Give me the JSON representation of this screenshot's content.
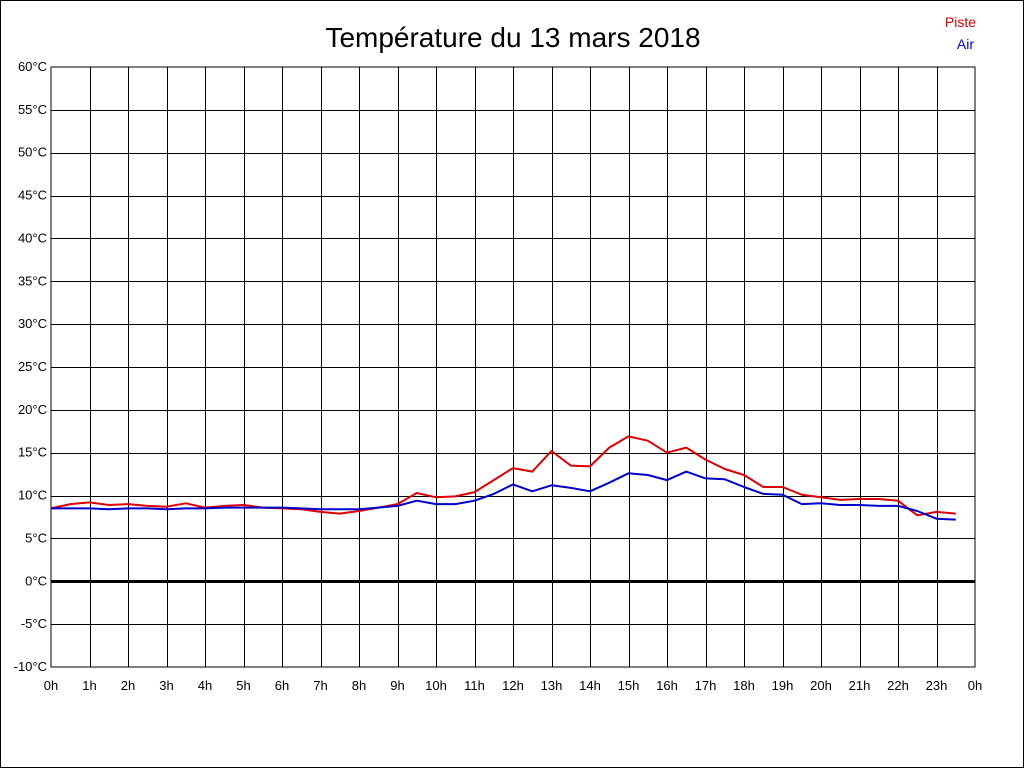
{
  "chart_data": {
    "type": "line",
    "title": "Température du 13 mars 2018",
    "x_tick_labels": [
      "0h",
      "1h",
      "2h",
      "3h",
      "4h",
      "5h",
      "6h",
      "7h",
      "8h",
      "9h",
      "10h",
      "11h",
      "12h",
      "13h",
      "14h",
      "15h",
      "16h",
      "17h",
      "18h",
      "19h",
      "20h",
      "21h",
      "22h",
      "23h",
      "0h"
    ],
    "y_tick_labels": [
      "60°C",
      "55°C",
      "50°C",
      "45°C",
      "40°C",
      "35°C",
      "30°C",
      "25°C",
      "20°C",
      "15°C",
      "10°C",
      "5°C",
      "0°C",
      "-5°C",
      "-10°C"
    ],
    "xlim": [
      0,
      24
    ],
    "ylim": [
      -10,
      60
    ],
    "y_ticks": [
      60,
      55,
      50,
      45,
      40,
      35,
      30,
      25,
      20,
      15,
      10,
      5,
      0,
      -5,
      -10
    ],
    "grid": true,
    "legend_position": "top-right",
    "x": [
      0,
      0.5,
      1,
      1.5,
      2,
      2.5,
      3,
      3.5,
      4,
      4.5,
      5,
      5.5,
      6,
      6.5,
      7,
      7.5,
      8,
      8.5,
      9,
      9.5,
      10,
      10.5,
      11,
      11.5,
      12,
      12.5,
      13,
      13.5,
      14,
      14.5,
      15,
      15.5,
      16,
      16.5,
      17,
      17.5,
      18,
      18.5,
      19,
      19.5,
      20,
      20.5,
      21,
      21.5,
      22,
      22.5,
      23,
      23.5
    ],
    "series": [
      {
        "name": "Piste",
        "color": "#dd0000",
        "values": [
          8.5,
          9.0,
          9.2,
          8.9,
          9.0,
          8.8,
          8.7,
          9.1,
          8.6,
          8.8,
          8.9,
          8.6,
          8.5,
          8.4,
          8.1,
          7.9,
          8.2,
          8.6,
          9.0,
          10.3,
          9.8,
          9.9,
          10.4,
          11.8,
          13.2,
          12.8,
          15.2,
          13.5,
          13.4,
          15.6,
          16.9,
          16.4,
          15.0,
          15.6,
          14.2,
          13.1,
          12.4,
          11.0,
          11.0,
          10.1,
          9.8,
          9.5,
          9.6,
          9.6,
          9.4,
          7.7,
          8.1,
          7.9
        ]
      },
      {
        "name": "Air",
        "color": "#0000cc",
        "values": [
          8.5,
          8.5,
          8.5,
          8.4,
          8.5,
          8.5,
          8.4,
          8.5,
          8.5,
          8.6,
          8.6,
          8.6,
          8.6,
          8.5,
          8.4,
          8.4,
          8.4,
          8.6,
          8.8,
          9.4,
          9.0,
          9.0,
          9.4,
          10.2,
          11.3,
          10.5,
          11.2,
          10.9,
          10.5,
          11.5,
          12.6,
          12.4,
          11.8,
          12.8,
          12.0,
          11.9,
          11.0,
          10.2,
          10.1,
          9.0,
          9.1,
          8.9,
          8.9,
          8.8,
          8.8,
          8.2,
          7.3,
          7.2
        ]
      }
    ]
  }
}
